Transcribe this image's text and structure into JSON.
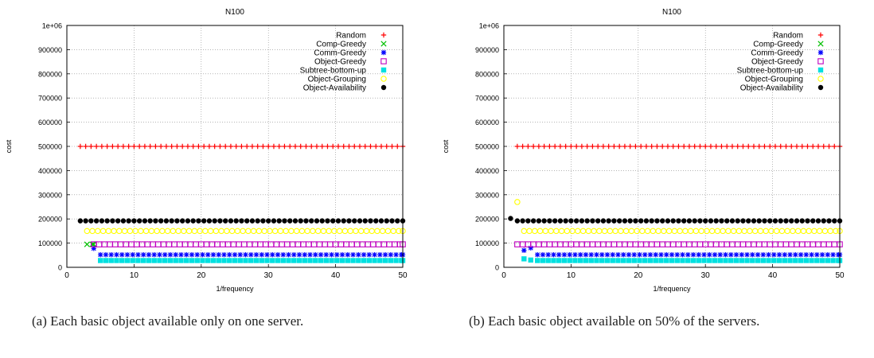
{
  "colors": {
    "Random": "#ff0000",
    "Comp-Greedy": "#00c000",
    "Comm-Greedy": "#0000ff",
    "Object-Greedy": "#c000c0",
    "Subtree-bottom-up": "#00e0e0",
    "Object-Grouping": "#ffff00",
    "Object-Availability": "#000000",
    "grid": "#888888"
  },
  "panels": [
    {
      "caption": "(a) Each basic object available only on one server.",
      "chart_data": {
        "type": "scatter",
        "title": "N100",
        "xlabel": "1/frequency",
        "ylabel": "cost",
        "xlim": [
          0,
          50
        ],
        "ylim": [
          0,
          1000000
        ],
        "xticks": [
          "0",
          "10",
          "20",
          "30",
          "40",
          "50"
        ],
        "yticks": [
          "0",
          "100000",
          "200000",
          "300000",
          "400000",
          "500000",
          "600000",
          "700000",
          "800000",
          "900000",
          "1e+06"
        ],
        "grid": true,
        "legend_position": "top-right",
        "x_range": [
          2,
          50
        ],
        "series": [
          {
            "name": "Random",
            "marker": "plus",
            "values": [
              [
                2,
                500000
              ],
              [
                50,
                500000
              ]
            ]
          },
          {
            "name": "Comp-Greedy",
            "marker": "cross",
            "values": [
              [
                3,
                95000
              ],
              [
                4,
                95000
              ]
            ]
          },
          {
            "name": "Comm-Greedy",
            "marker": "star",
            "values": [
              [
                4,
                78000
              ],
              [
                5,
                52000
              ],
              [
                50,
                52000
              ]
            ]
          },
          {
            "name": "Object-Greedy",
            "marker": "square-open",
            "values": [
              [
                4,
                95000
              ],
              [
                50,
                95000
              ]
            ]
          },
          {
            "name": "Subtree-bottom-up",
            "marker": "square-filled",
            "values": [
              [
                5,
                28000
              ],
              [
                50,
                28000
              ]
            ]
          },
          {
            "name": "Object-Grouping",
            "marker": "circle-open",
            "values": [
              [
                3,
                150000
              ],
              [
                50,
                150000
              ]
            ]
          },
          {
            "name": "Object-Availability",
            "marker": "circle-filled",
            "values": [
              [
                2,
                192000
              ],
              [
                50,
                192000
              ]
            ]
          }
        ]
      }
    },
    {
      "caption": "(b) Each basic object available on 50% of the servers.",
      "chart_data": {
        "type": "scatter",
        "title": "N100",
        "xlabel": "1/frequency",
        "ylabel": "cost",
        "xlim": [
          0,
          50
        ],
        "ylim": [
          0,
          1000000
        ],
        "xticks": [
          "0",
          "10",
          "20",
          "30",
          "40",
          "50"
        ],
        "yticks": [
          "0",
          "100000",
          "200000",
          "300000",
          "400000",
          "500000",
          "600000",
          "700000",
          "800000",
          "900000",
          "1e+06"
        ],
        "grid": true,
        "legend_position": "top-right",
        "x_range": [
          2,
          50
        ],
        "series": [
          {
            "name": "Random",
            "marker": "plus",
            "values": [
              [
                2,
                500000
              ],
              [
                50,
                500000
              ]
            ]
          },
          {
            "name": "Comp-Greedy",
            "marker": "cross",
            "values": []
          },
          {
            "name": "Comm-Greedy",
            "marker": "star",
            "values": [
              [
                3,
                70000
              ],
              [
                4,
                80000
              ],
              [
                5,
                52000
              ],
              [
                50,
                52000
              ]
            ]
          },
          {
            "name": "Object-Greedy",
            "marker": "square-open",
            "values": [
              [
                2,
                95000
              ],
              [
                50,
                95000
              ]
            ]
          },
          {
            "name": "Subtree-bottom-up",
            "marker": "square-filled",
            "values": [
              [
                3,
                35000
              ],
              [
                4,
                30000
              ],
              [
                5,
                28000
              ],
              [
                50,
                28000
              ]
            ]
          },
          {
            "name": "Object-Grouping",
            "marker": "circle-open",
            "values": [
              [
                2,
                270000
              ],
              [
                3,
                150000
              ],
              [
                50,
                150000
              ]
            ]
          },
          {
            "name": "Object-Availability",
            "marker": "circle-filled",
            "values": [
              [
                1,
                202000
              ],
              [
                2,
                192000
              ],
              [
                50,
                192000
              ]
            ]
          }
        ]
      }
    }
  ]
}
